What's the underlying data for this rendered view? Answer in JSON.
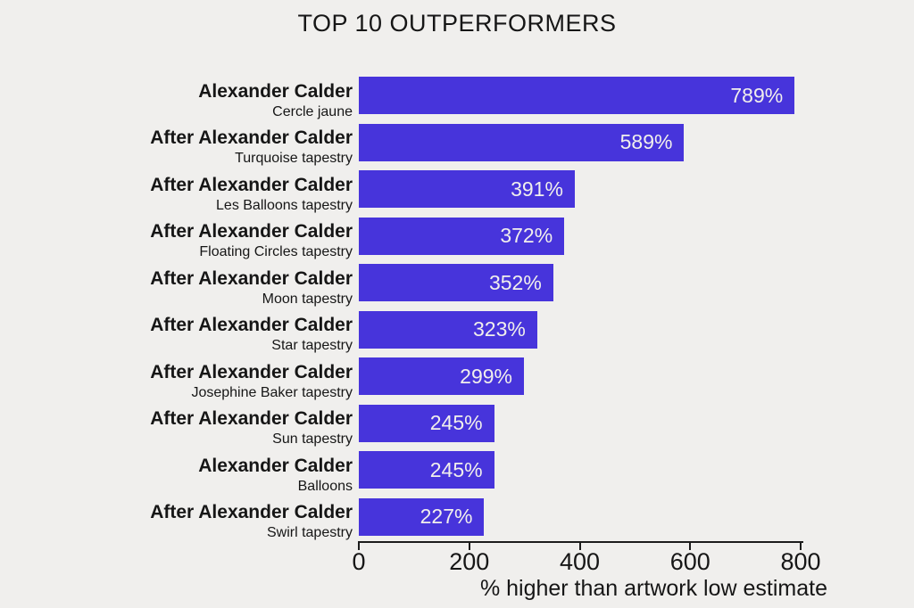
{
  "chart_data": {
    "type": "bar",
    "orientation": "horizontal",
    "title": "TOP 10 OUTPERFORMERS",
    "xlabel": "% higher than artwork low estimate",
    "xlim": [
      0,
      800
    ],
    "xticks": [
      "0",
      "200",
      "400",
      "600",
      "800"
    ],
    "xtick_values": [
      0,
      200,
      400,
      600,
      800
    ],
    "grid": false,
    "legend_position": "none",
    "bars": [
      {
        "artist": "Alexander Calder",
        "artwork": "Cercle jaune",
        "value": 789,
        "label": "789%"
      },
      {
        "artist": "After Alexander Calder",
        "artwork": "Turquoise tapestry",
        "value": 589,
        "label": "589%"
      },
      {
        "artist": "After Alexander Calder",
        "artwork": "Les Balloons tapestry",
        "value": 391,
        "label": "391%"
      },
      {
        "artist": "After Alexander Calder",
        "artwork": "Floating Circles tapestry",
        "value": 372,
        "label": "372%"
      },
      {
        "artist": "After Alexander Calder",
        "artwork": "Moon tapestry",
        "value": 352,
        "label": "352%"
      },
      {
        "artist": "After Alexander Calder",
        "artwork": "Star tapestry",
        "value": 323,
        "label": "323%"
      },
      {
        "artist": "After Alexander Calder",
        "artwork": "Josephine Baker tapestry",
        "value": 299,
        "label": "299%"
      },
      {
        "artist": "After Alexander Calder",
        "artwork": "Sun tapestry",
        "value": 245,
        "label": "245%"
      },
      {
        "artist": "Alexander Calder",
        "artwork": "Balloons",
        "value": 245,
        "label": "245%"
      },
      {
        "artist": "After Alexander Calder",
        "artwork": "Swirl tapestry",
        "value": 227,
        "label": "227%"
      }
    ],
    "colors": {
      "bar": "#4734db",
      "background": "#f0efed",
      "text": "#161616",
      "value_text": "#f1efec",
      "axis": "#1c1c1c"
    }
  }
}
